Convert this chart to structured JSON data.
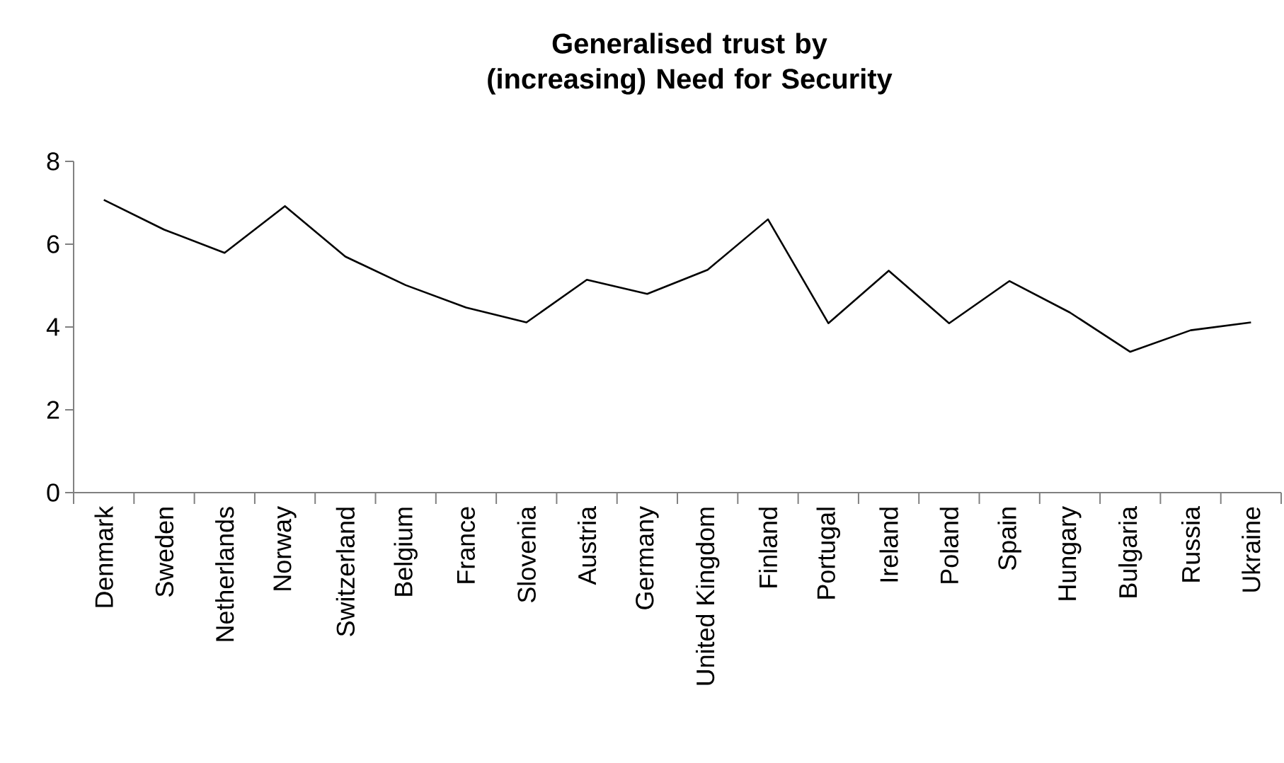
{
  "chart_data": {
    "type": "line",
    "title": "Generalised trust by (increasing) Need for Security",
    "categories": [
      "Denmark",
      "Sweden",
      "Netherlands",
      "Norway",
      "Switzerland",
      "Belgium",
      "France",
      "Slovenia",
      "Austria",
      "Germany",
      "United Kingdom",
      "Finland",
      "Portugal",
      "Ireland",
      "Poland",
      "Spain",
      "Hungary",
      "Bulgaria",
      "Russia",
      "Ukraine"
    ],
    "values": [
      7.07,
      6.35,
      5.79,
      6.92,
      5.7,
      5.01,
      4.47,
      4.11,
      5.14,
      4.8,
      5.38,
      6.6,
      4.09,
      5.36,
      4.09,
      5.11,
      4.35,
      3.4,
      3.92,
      4.11
    ],
    "color": "#000000",
    "ylim": [
      0,
      8
    ],
    "yticks": [
      0,
      2,
      4,
      6,
      8
    ],
    "marker": "none",
    "line_style": "solid"
  }
}
